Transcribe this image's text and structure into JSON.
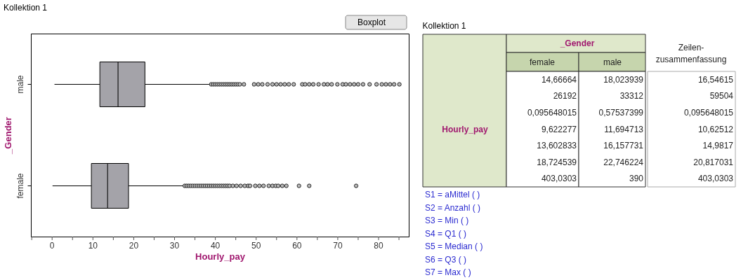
{
  "chart_data": [
    {
      "type": "box",
      "title": "Kollektion 1",
      "orientation": "horizontal",
      "xlabel": "Hourly_pay",
      "ylabel": "_Gender",
      "categories": [
        "male",
        "female"
      ],
      "xlim": [
        -5.2,
        87.4
      ],
      "xticks": [
        {
          "value": -5,
          "label": null
        },
        0,
        {
          "value": 5,
          "label": null
        },
        10,
        {
          "value": 15,
          "label": null
        },
        20,
        {
          "value": 25,
          "label": null
        },
        30,
        {
          "value": 35,
          "label": null
        },
        40,
        {
          "value": 45,
          "label": null
        },
        50,
        {
          "value": 55,
          "label": null
        },
        60,
        {
          "value": 65,
          "label": null
        },
        70,
        {
          "value": 75,
          "label": null
        },
        80,
        {
          "value": 85,
          "label": null
        }
      ],
      "grid": false,
      "annotations": [
        "Boxplot"
      ],
      "series": [
        {
          "color": "#a4a3a9",
          "boxes": [
            {
              "low": 0.57537399,
              "q1": 11.694713,
              "median": 16.157731,
              "q3": 22.746224,
              "high": 38.9,
              "outliers": [
                39,
                39.5,
                40,
                40.5,
                41,
                41.5,
                42,
                42.5,
                43,
                43.5,
                44,
                44.5,
                45,
                45.5,
                46,
                47,
                49.5,
                50.5,
                51.5,
                52.8,
                54,
                55,
                56,
                57,
                58,
                59.2,
                61.3,
                62,
                63,
                64,
                65.3,
                66.6,
                67.5,
                68.5,
                69.9,
                71.2,
                72,
                73,
                74,
                75,
                76.2,
                77.8,
                79.5,
                80.8,
                81.8,
                82.8,
                83.8,
                85.1
              ]
            },
            {
              "low": 0.095648015,
              "q1": 9.622277,
              "median": 13.602833,
              "q3": 18.724539,
              "high": 32.2,
              "outliers": [
                32.5,
                33,
                33.5,
                34,
                34.5,
                35,
                35.5,
                36,
                36.5,
                37,
                37.5,
                38,
                38.5,
                39,
                39.5,
                40,
                40.5,
                41,
                41.5,
                42,
                42.5,
                43,
                43.5,
                44.3,
                45.2,
                46.2,
                47.2,
                48,
                48.5,
                49.8,
                50.8,
                51.8,
                53.1,
                54,
                54.8,
                55.4,
                56.4,
                57.4,
                60.5,
                63,
                74.5
              ]
            }
          ]
        }
      ]
    },
    {
      "type": "other",
      "title": "Kollektion 1",
      "annotations": [
        "_Gender",
        "female",
        "male",
        "Zeilen-\nzusammenfassung",
        "Hourly_pay",
        "14,66664",
        "18,023939",
        "16,54615",
        "26192",
        "33312",
        "59504",
        "0,095648015",
        "0,57537399",
        "0,095648015",
        "9,622277",
        "11,694713",
        "10,62512",
        "13,602833",
        "16,157731",
        "14,9817",
        "18,724539",
        "22,746224",
        "20,817031",
        "403,0303",
        "390",
        "403,0303",
        "S1 = aMittel (  )",
        "S2 = Anzahl (  )",
        "S3 = Min (  )",
        "S4 = Q1 (  )",
        "S5 = Median (  )",
        "S6 = Q3 (  )",
        "S7 = Max (  )"
      ]
    }
  ]
}
